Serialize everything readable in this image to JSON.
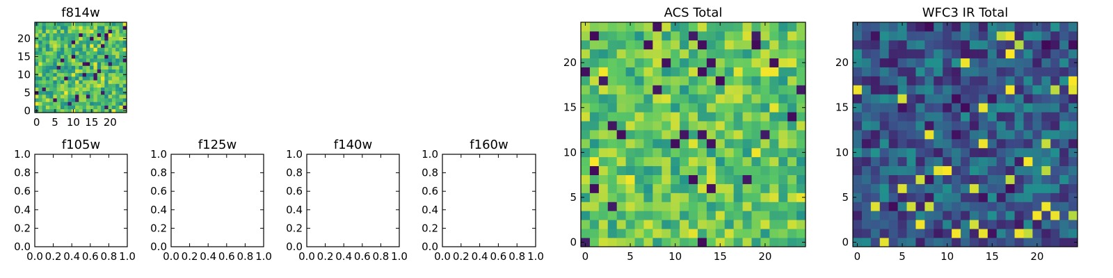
{
  "figure": {
    "title": "",
    "colormap": "viridis",
    "colormap_stops": [
      "#440154",
      "#3b528b",
      "#21908d",
      "#5dc963",
      "#fde725"
    ]
  },
  "chart_data": [
    {
      "id": "f814w",
      "type": "heatmap",
      "title": "f814w",
      "xlim": [
        -0.5,
        24.5
      ],
      "ylim": [
        -0.5,
        24.5
      ],
      "xticks": [
        0,
        5,
        10,
        15,
        20
      ],
      "yticks": [
        0,
        5,
        10,
        15,
        20
      ],
      "grid_size": [
        25,
        25
      ],
      "value_range": [
        0,
        1
      ],
      "typical_value": 0.68,
      "seed": 814
    },
    {
      "id": "f105w",
      "type": "heatmap",
      "title": "f105w",
      "xlim": [
        0,
        1
      ],
      "ylim": [
        0,
        1
      ],
      "xticks": [
        "0.0",
        "0.2",
        "0.4",
        "0.6",
        "0.8",
        "1.0"
      ],
      "yticks": [
        "0.0",
        "0.2",
        "0.4",
        "0.6",
        "0.8",
        "1.0"
      ],
      "empty": true
    },
    {
      "id": "f125w",
      "type": "heatmap",
      "title": "f125w",
      "xlim": [
        0,
        1
      ],
      "ylim": [
        0,
        1
      ],
      "xticks": [
        "0.0",
        "0.2",
        "0.4",
        "0.6",
        "0.8",
        "1.0"
      ],
      "yticks": [
        "0.0",
        "0.2",
        "0.4",
        "0.6",
        "0.8",
        "1.0"
      ],
      "empty": true
    },
    {
      "id": "f140w",
      "type": "heatmap",
      "title": "f140w",
      "xlim": [
        0,
        1
      ],
      "ylim": [
        0,
        1
      ],
      "xticks": [
        "0.0",
        "0.2",
        "0.4",
        "0.6",
        "0.8",
        "1.0"
      ],
      "yticks": [
        "0.0",
        "0.2",
        "0.4",
        "0.6",
        "0.8",
        "1.0"
      ],
      "empty": true
    },
    {
      "id": "f160w",
      "type": "heatmap",
      "title": "f160w",
      "xlim": [
        0,
        1
      ],
      "ylim": [
        0,
        1
      ],
      "xticks": [
        "0.0",
        "0.2",
        "0.4",
        "0.6",
        "0.8",
        "1.0"
      ],
      "yticks": [
        "0.0",
        "0.2",
        "0.4",
        "0.6",
        "0.8",
        "1.0"
      ],
      "empty": true
    },
    {
      "id": "acs-total",
      "type": "heatmap",
      "title": "ACS Total",
      "xlim": [
        -0.5,
        24.5
      ],
      "ylim": [
        -0.5,
        24.5
      ],
      "xticks": [
        0,
        5,
        10,
        15,
        20
      ],
      "yticks": [
        0,
        5,
        10,
        15,
        20
      ],
      "grid_size": [
        25,
        25
      ],
      "value_range": [
        0,
        1
      ],
      "typical_value": 0.72,
      "seed": 2024
    },
    {
      "id": "wfc3-ir-total",
      "type": "heatmap",
      "title": "WFC3 IR Total",
      "xlim": [
        -0.5,
        24.5
      ],
      "ylim": [
        -0.5,
        24.5
      ],
      "xticks": [
        0,
        5,
        10,
        15,
        20
      ],
      "yticks": [
        0,
        5,
        10,
        15,
        20
      ],
      "grid_size": [
        25,
        25
      ],
      "value_range": [
        0,
        1
      ],
      "typical_value": 0.3,
      "seed": 3303
    }
  ]
}
